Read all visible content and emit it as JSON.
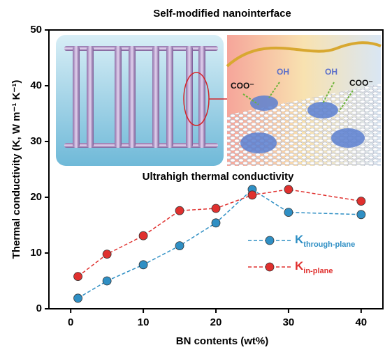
{
  "chart_data": {
    "type": "line",
    "title": "Self-modified nanointerface",
    "annotation": "Ultrahigh thermal conductivity",
    "x_label": "BN contents (wt%)",
    "y_label": "Thermal conductivity (K, W m⁻¹ K⁻¹)",
    "x": [
      1,
      5,
      10,
      15,
      20,
      25,
      30,
      40
    ],
    "series": [
      {
        "name": "K",
        "subscript": "through-plane",
        "color": "#2f8fc4",
        "values": [
          1.9,
          5.0,
          7.9,
          11.3,
          15.4,
          21.4,
          17.3,
          16.9
        ]
      },
      {
        "name": "K",
        "subscript": "in-plane",
        "color": "#e0302e",
        "values": [
          5.8,
          9.8,
          13.1,
          17.6,
          18.0,
          20.4,
          21.4,
          19.3
        ]
      }
    ],
    "xlim": [
      -3,
      43
    ],
    "xticks": [
      0,
      10,
      20,
      30,
      40
    ],
    "ylim": [
      0,
      50
    ],
    "yticks": [
      0,
      10,
      20,
      30,
      40,
      50
    ],
    "illustration": {
      "labels": [
        "COO⁻",
        "OH",
        "OH",
        "COO⁻"
      ]
    }
  }
}
